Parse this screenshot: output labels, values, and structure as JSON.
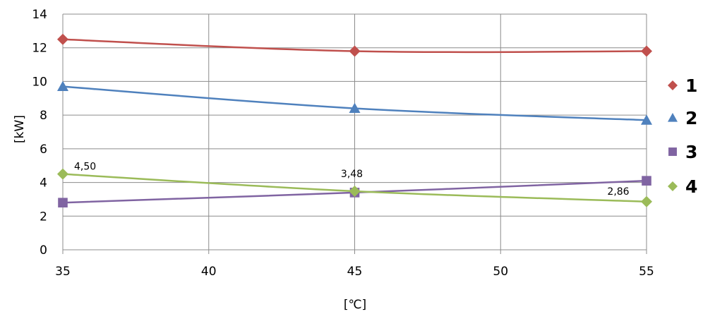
{
  "chart_data": {
    "type": "line",
    "xlabel": "[℃]",
    "ylabel": "[kW]",
    "xlim": [
      35,
      55
    ],
    "ylim": [
      0,
      14
    ],
    "x_ticks": [
      "35",
      "40",
      "45",
      "50",
      "55"
    ],
    "y_ticks": [
      "0",
      "2",
      "4",
      "6",
      "8",
      "10",
      "12",
      "14"
    ],
    "grid": true,
    "legend_position": "right",
    "series": [
      {
        "name": "1",
        "color": "#C0504D",
        "marker": "diamond",
        "x": [
          35,
          45,
          55
        ],
        "y": [
          12.5,
          11.8,
          11.8
        ]
      },
      {
        "name": "2",
        "color": "#4F81BD",
        "marker": "triangle",
        "x": [
          35,
          45,
          55
        ],
        "y": [
          9.7,
          8.4,
          7.7
        ]
      },
      {
        "name": "3",
        "color": "#8064A2",
        "marker": "square",
        "x": [
          35,
          45,
          55
        ],
        "y": [
          2.8,
          3.4,
          4.1
        ]
      },
      {
        "name": "4",
        "color": "#9BBB59",
        "marker": "diamond",
        "x": [
          35,
          45,
          55
        ],
        "y": [
          4.5,
          3.48,
          2.86
        ]
      }
    ],
    "annotations": [
      {
        "series": "4",
        "x": 35,
        "y": 4.5,
        "text": "4,50"
      },
      {
        "series": "4",
        "x": 45,
        "y": 3.48,
        "text": "3,48"
      },
      {
        "series": "4",
        "x": 55,
        "y": 2.86,
        "text": "2,86"
      }
    ]
  }
}
